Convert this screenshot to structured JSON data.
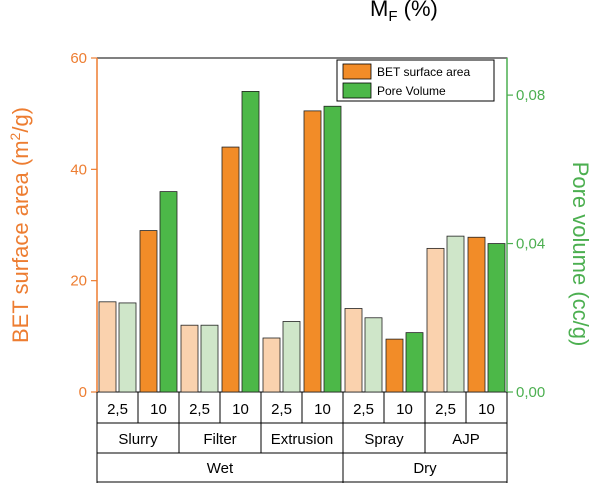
{
  "chart_data": {
    "type": "bar",
    "top_title": {
      "main": "M",
      "sub": "F",
      "rest": " (%)"
    },
    "ylabel_left": {
      "pre": "BET surface area (m",
      "sup": "2",
      "post": "/g)"
    },
    "ylabel_right": "Pore volume (cc/g)",
    "ylim_left": [
      0,
      60
    ],
    "ylim_right": [
      0,
      0.09
    ],
    "yticks_left": [
      "0",
      "20",
      "40",
      "60"
    ],
    "yticks_left_values": [
      0,
      20,
      40,
      60
    ],
    "yticks_right": [
      "0,00",
      "0,04",
      "0,08"
    ],
    "yticks_right_values": [
      0,
      0.04,
      0.08
    ],
    "categories": [
      "2,5",
      "10",
      "2,5",
      "10",
      "2,5",
      "10",
      "2,5",
      "10",
      "2,5",
      "10"
    ],
    "groups_level2": [
      {
        "label": "Slurry",
        "span": 2
      },
      {
        "label": "Filter",
        "span": 2
      },
      {
        "label": "Extrusion",
        "span": 2
      },
      {
        "label": "Spray",
        "span": 2
      },
      {
        "label": "AJP",
        "span": 2
      }
    ],
    "groups_level3": [
      {
        "label": "Wet",
        "span": 6
      },
      {
        "label": "Dry",
        "span": 4
      }
    ],
    "series": [
      {
        "name": "BET surface area",
        "axis": "left",
        "values": [
          16.2,
          29.0,
          12.0,
          44.0,
          9.7,
          50.5,
          15.0,
          9.5,
          25.8,
          27.8
        ]
      },
      {
        "name": "Pore Volume",
        "axis": "right",
        "values": [
          0.024,
          0.054,
          0.018,
          0.081,
          0.019,
          0.077,
          0.02,
          0.016,
          0.042,
          0.04
        ]
      }
    ],
    "colors": {
      "bet_dark": "#F28C28",
      "bet_light": "#FAD2AE",
      "pore_dark": "#4CB848",
      "pore_light": "#CFE6C9",
      "left_axis": "#ED7D31",
      "right_axis": "#4CAF50"
    },
    "legend_placement": "top-right",
    "grid": false
  }
}
